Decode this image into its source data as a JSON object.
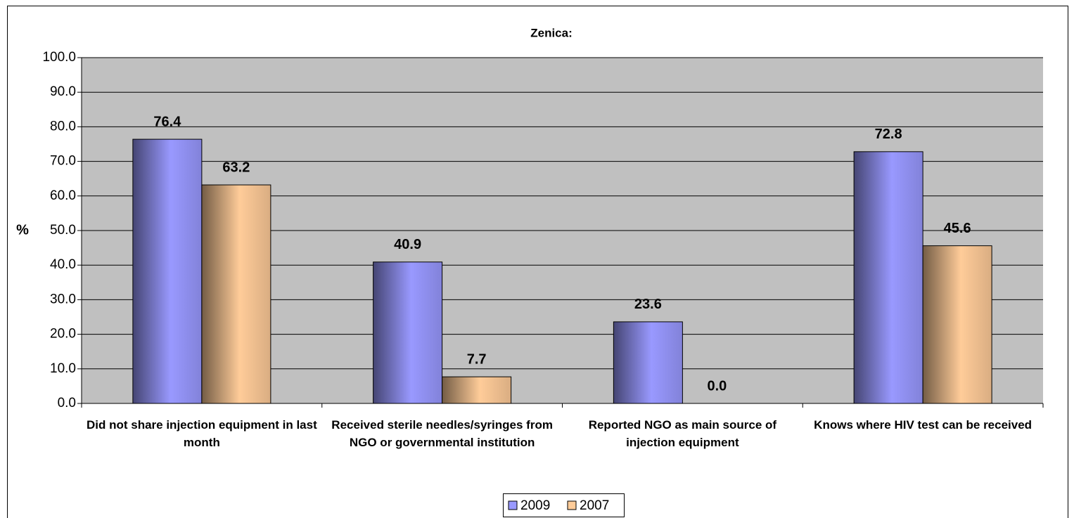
{
  "chart_data": {
    "type": "bar",
    "title": "Zenica:",
    "y_label": "%",
    "categories": [
      "Did not share injection equipment in last month",
      "Received sterile needles/syringes from NGO or governmental institution",
      "Reported NGO as main source of injection equipment",
      "Knows where HIV test can be received"
    ],
    "series": [
      {
        "name": "2009",
        "color": "#9999ff",
        "values": [
          76.4,
          40.9,
          23.6,
          72.8
        ],
        "value_labels": [
          "76.4",
          "40.9",
          "23.6",
          "72.8"
        ]
      },
      {
        "name": "2007",
        "color": "#ffcc99",
        "values": [
          63.2,
          7.7,
          0,
          45.6
        ],
        "value_labels": [
          "63.2",
          "7.7",
          "0.0",
          "45.6"
        ]
      }
    ],
    "ylim": [
      0,
      100
    ],
    "yticks": [
      {
        "value": 0,
        "label": "0.0"
      },
      {
        "value": 10,
        "label": "10.0"
      },
      {
        "value": 20,
        "label": "20.0"
      },
      {
        "value": 30,
        "label": "30.0"
      },
      {
        "value": 40,
        "label": "40.0"
      },
      {
        "value": 50,
        "label": "50.0"
      },
      {
        "value": 60,
        "label": "60.0"
      },
      {
        "value": 70,
        "label": "70.0"
      },
      {
        "value": 80,
        "label": "80.0"
      },
      {
        "value": 90,
        "label": "90.0"
      },
      {
        "value": 100,
        "label": "100.0"
      }
    ],
    "grid": true,
    "legend": "bottom"
  }
}
